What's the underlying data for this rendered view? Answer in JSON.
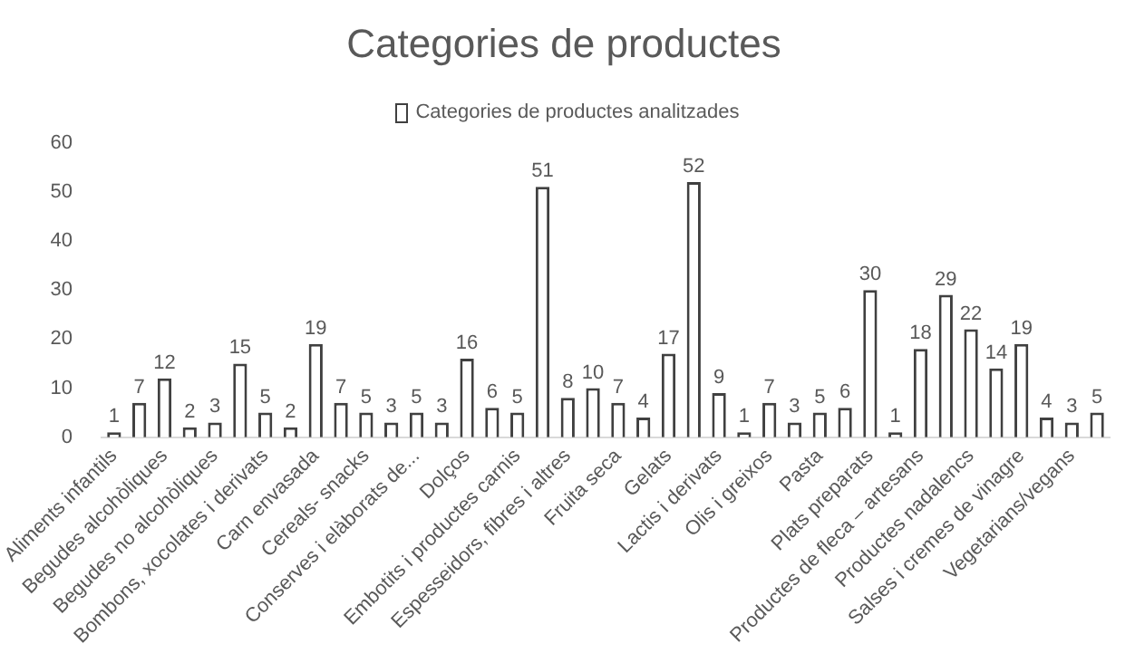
{
  "chart_data": {
    "type": "bar",
    "title": "Categories de productes",
    "categories": [
      "Aliments infantils",
      null,
      "Begudes alcohòliques",
      null,
      "Begudes no alcohòliques",
      null,
      "Bombons, xocolates i derivats",
      null,
      "Carn envasada",
      null,
      "Cereals- snacks",
      null,
      "Conserves i elàborats de...",
      null,
      "Dolços",
      null,
      "Embotits i productes carnis",
      null,
      "Espesseidors, fibres i altres",
      null,
      "Fruita seca",
      null,
      "Gelats",
      null,
      "Lactis i derivats",
      null,
      "Olis i greixos",
      null,
      "Pasta",
      null,
      "Plats preparats",
      null,
      "Productes de fleca – artesans",
      null,
      "Productes nadalencs",
      null,
      "Salses i cremes de vinagre",
      null,
      "Vegetarians/vegans",
      null
    ],
    "series": [
      {
        "name": "Categories de productes analitzades",
        "color": "#ffffff",
        "values": [
          1,
          7,
          12,
          2,
          3,
          15,
          5,
          2,
          19,
          7,
          5,
          3,
          5,
          3,
          16,
          6,
          5,
          51,
          8,
          10,
          7,
          4,
          17,
          52,
          9,
          1,
          7,
          3,
          5,
          6,
          30,
          1,
          18,
          29,
          22,
          14,
          19,
          4,
          3,
          5
        ]
      }
    ],
    "ylim": [
      0,
      60
    ],
    "yticks": [
      0,
      10,
      20,
      30,
      40,
      50,
      60
    ],
    "grid": false,
    "legend": "top",
    "data_labels": true
  }
}
